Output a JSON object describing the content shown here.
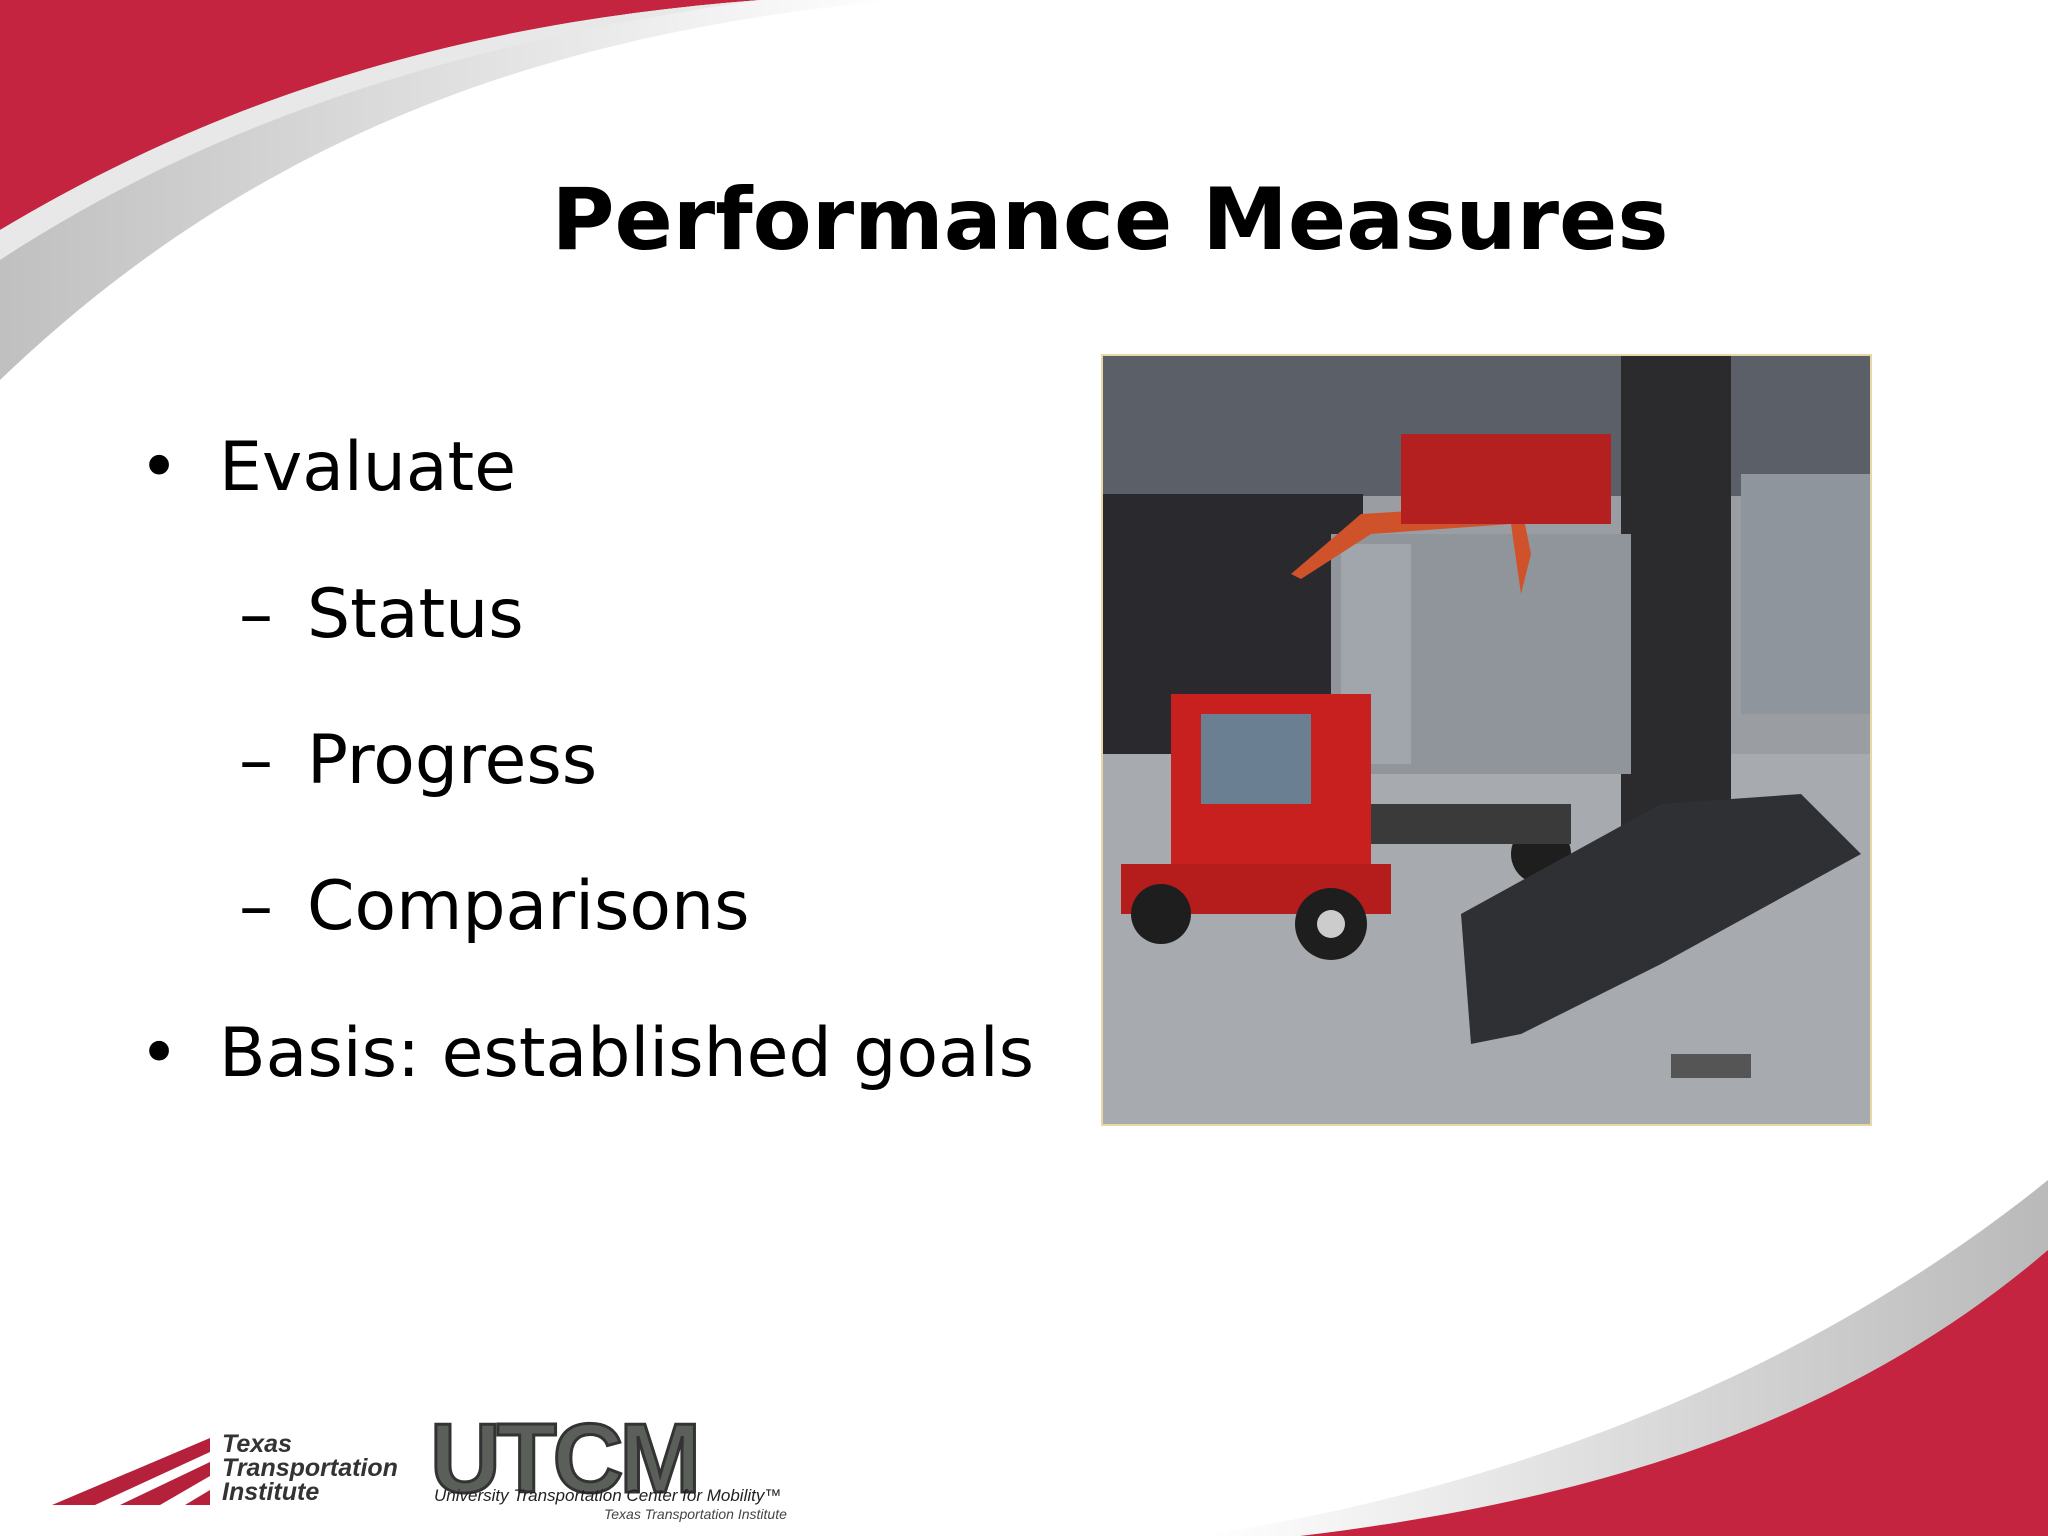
{
  "slide": {
    "title": "Performance Measures",
    "bullets": [
      {
        "text": "Evaluate",
        "sub": [
          "Status",
          "Progress",
          "Comparisons"
        ]
      },
      {
        "text": "Basis: established goals"
      }
    ]
  },
  "logos": {
    "tti": [
      "Texas",
      "Transportation",
      "Institute"
    ],
    "utcm": {
      "mark": "UTCM",
      "name": "University Transportation Center for Mobility™",
      "sub": "Texas Transportation Institute"
    }
  }
}
